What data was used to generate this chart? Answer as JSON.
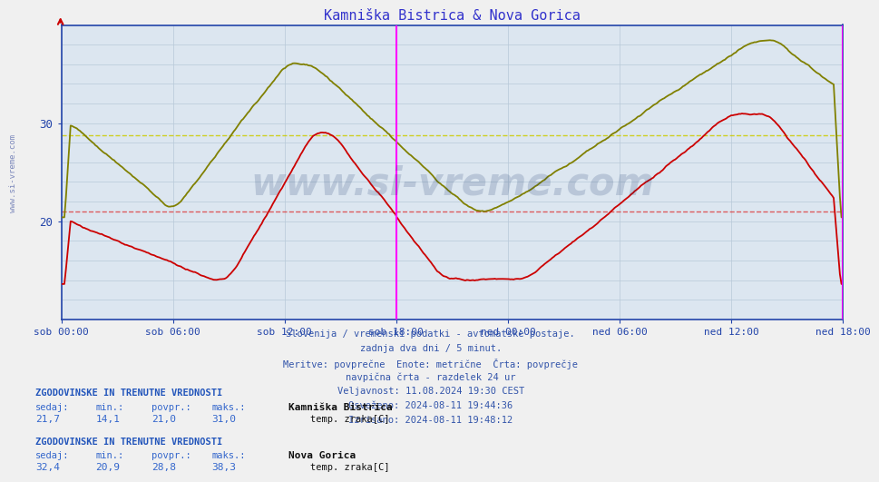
{
  "title": "Kamniška Bistrica & Nova Gorica",
  "title_color": "#3333cc",
  "bg_color": "#dce6f0",
  "plot_bg_color": "#dce6f0",
  "grid_color": "#b8c8d8",
  "axis_color": "#2244aa",
  "x_tick_labels": [
    "sob 00:00",
    "sob 06:00",
    "sob 12:00",
    "sob 18:00",
    "ned 00:00",
    "ned 06:00",
    "ned 12:00",
    "ned 18:00"
  ],
  "y_ticks": [
    20,
    30
  ],
  "y_min": 10,
  "y_max": 40,
  "kb_color": "#cc0000",
  "kb_avg": 21.0,
  "kb_min": 14.1,
  "kb_max": 31.0,
  "kb_current": 21.7,
  "ng_color": "#808000",
  "ng_avg": 28.8,
  "ng_min": 20.9,
  "ng_max": 38.3,
  "ng_current": 32.4,
  "vline_color": "#ff00ff",
  "watermark_color": "#1a3a6e",
  "info_lines": [
    "Slovenija / vremenski podatki - avtomatske postaje.",
    "zadnja dva dni / 5 minut.",
    "Meritve: povprečne  Enote: metrične  Črta: povprečje",
    "navpična črta - razdelek 24 ur",
    "Veljavnost: 11.08.2024 19:30 CEST",
    "Osveženo: 2024-08-11 19:44:36",
    "Izrisano: 2024-08-11 19:48:12"
  ],
  "n_points": 504,
  "hours_total": 42
}
